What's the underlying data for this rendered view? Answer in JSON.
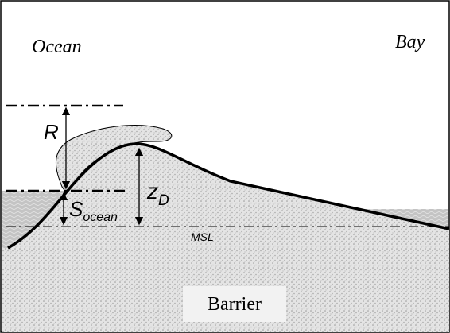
{
  "labels": {
    "ocean": "Ocean",
    "bay": "Bay",
    "r": "R",
    "zd": {
      "main": "z",
      "sub": "D"
    },
    "s": {
      "main": "S",
      "sub": "ocean"
    },
    "msl": "MSL",
    "barrier": "Barrier"
  }
}
